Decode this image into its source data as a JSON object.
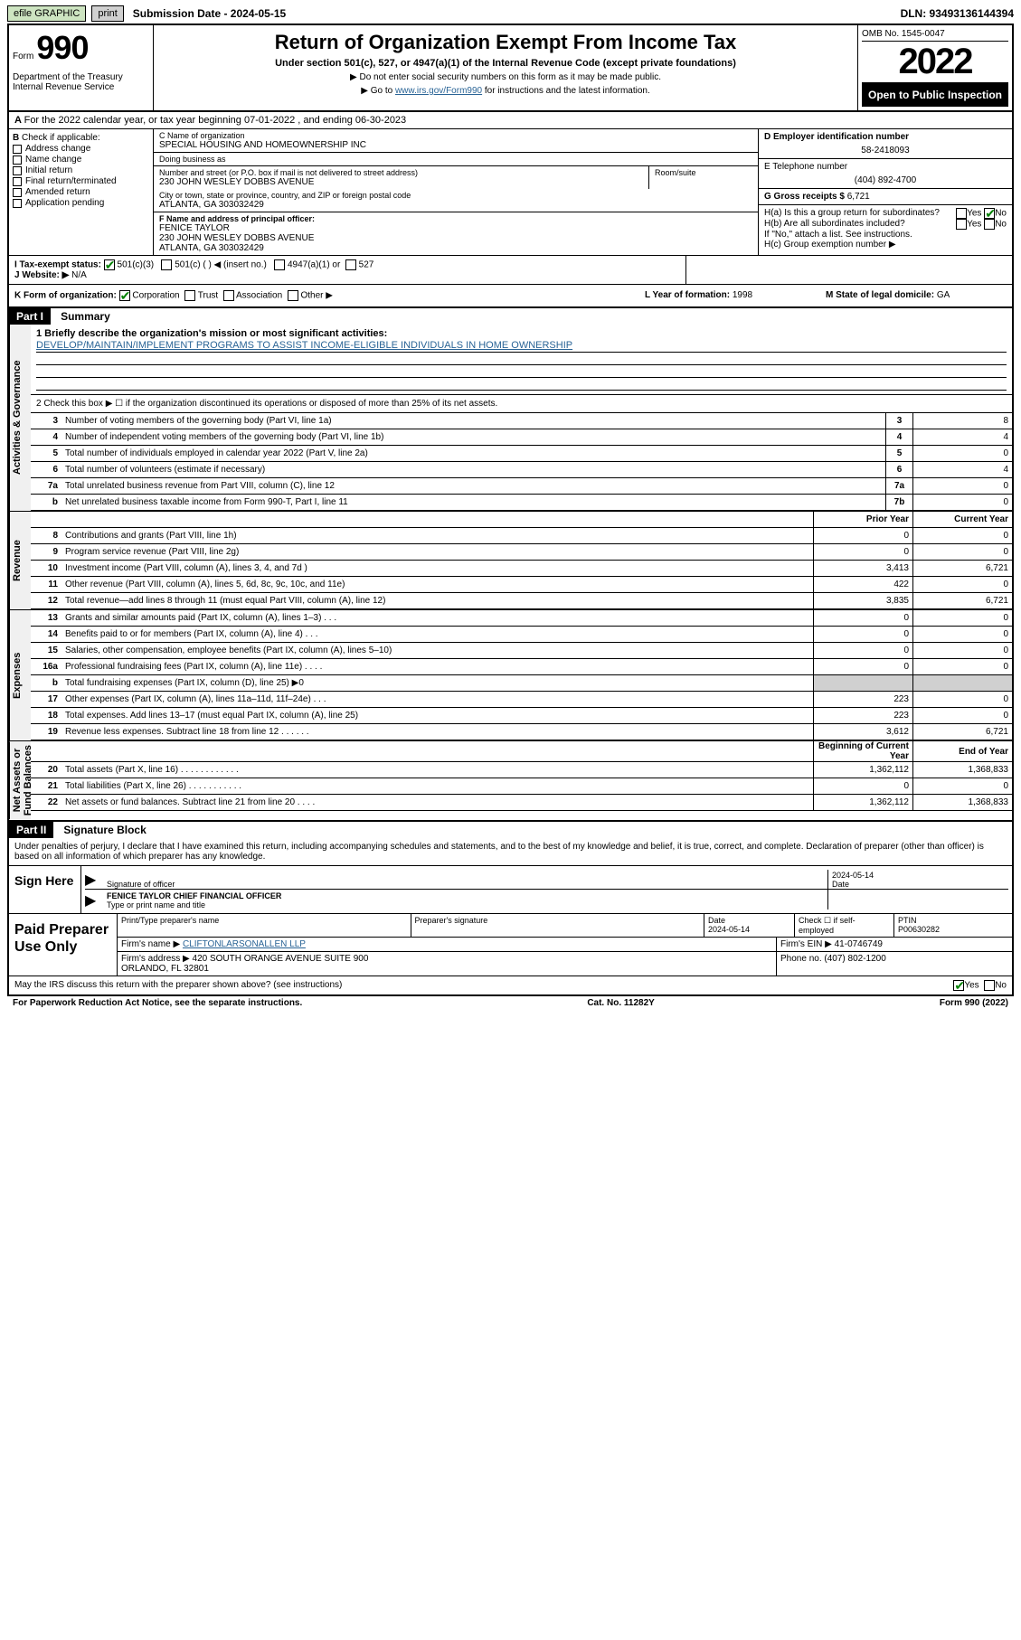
{
  "topbar": {
    "efile": "efile GRAPHIC",
    "print": "print",
    "subdate_label": "Submission Date - 2024-05-15",
    "dln": "DLN: 93493136144394"
  },
  "header": {
    "form_prefix": "Form",
    "form_no": "990",
    "dept": "Department of the Treasury\nInternal Revenue Service",
    "title": "Return of Organization Exempt From Income Tax",
    "sub1": "Under section 501(c), 527, or 4947(a)(1) of the Internal Revenue Code (except private foundations)",
    "sub2": "▶ Do not enter social security numbers on this form as it may be made public.",
    "sub3_pre": "▶ Go to ",
    "sub3_link": "www.irs.gov/Form990",
    "sub3_post": " for instructions and the latest information.",
    "omb": "OMB No. 1545-0047",
    "year": "2022",
    "open": "Open to Public Inspection"
  },
  "periodA": "For the 2022 calendar year, or tax year beginning 07-01-2022   , and ending 06-30-2023",
  "B": {
    "label": "Check if applicable:",
    "addr_change": "Address change",
    "name_change": "Name change",
    "initial": "Initial return",
    "final": "Final return/terminated",
    "amended": "Amended return",
    "app_pending": "Application pending"
  },
  "C": {
    "name_label": "C Name of organization",
    "name": "SPECIAL HOUSING AND HOMEOWNERSHIP INC",
    "dba_label": "Doing business as",
    "dba": "",
    "street_label": "Number and street (or P.O. box if mail is not delivered to street address)",
    "room_label": "Room/suite",
    "street": "230 JOHN WESLEY DOBBS AVENUE",
    "city_label": "City or town, state or province, country, and ZIP or foreign postal code",
    "city": "ATLANTA, GA  303032429"
  },
  "D": {
    "label": "D Employer identification number",
    "val": "58-2418093"
  },
  "E": {
    "label": "E Telephone number",
    "val": "(404) 892-4700"
  },
  "G": {
    "label": "G Gross receipts $",
    "val": "6,721"
  },
  "F": {
    "label": "F  Name and address of principal officer:",
    "name": "FENICE TAYLOR",
    "addr1": "230 JOHN WESLEY DOBBS AVENUE",
    "addr2": "ATLANTA, GA  303032429"
  },
  "H": {
    "a_label": "H(a)  Is this a group return for subordinates?",
    "a_yes": "Yes",
    "a_no": "No",
    "a_no_checked": true,
    "b_label": "H(b)  Are all subordinates included?",
    "b_yes": "Yes",
    "b_no": "No",
    "b_note": "If \"No,\" attach a list. See instructions.",
    "c_label": "H(c)  Group exemption number ▶"
  },
  "I": {
    "label": "I   Tax-exempt status:",
    "c3": "501(c)(3)",
    "c3_checked": true,
    "cx": "501(c) (   ) ◀ (insert no.)",
    "a1": "4947(a)(1) or",
    "s527": "527"
  },
  "J": {
    "label": "J   Website: ▶",
    "val": "N/A"
  },
  "K": {
    "label": "K Form of organization:",
    "corp": "Corporation",
    "corp_checked": true,
    "trust": "Trust",
    "assoc": "Association",
    "other": "Other ▶"
  },
  "L": {
    "label": "L Year of formation:",
    "val": "1998"
  },
  "M": {
    "label": "M State of legal domicile:",
    "val": "GA"
  },
  "part1": {
    "num": "Part I",
    "title": "Summary"
  },
  "sidelabels": {
    "gov": "Activities & Governance",
    "rev": "Revenue",
    "exp": "Expenses",
    "net": "Net Assets or\nFund Balances"
  },
  "line1": {
    "label": "1  Briefly describe the organization's mission or most significant activities:",
    "text": "DEVELOP/MAINTAIN/IMPLEMENT PROGRAMS TO ASSIST INCOME-ELIGIBLE INDIVIDUALS IN HOME OWNERSHIP"
  },
  "line2": "2   Check this box ▶ ☐  if the organization discontinued its operations or disposed of more than 25% of its net assets.",
  "govlines": [
    {
      "n": "3",
      "t": "Number of voting members of the governing body (Part VI, line 1a)",
      "b": "3",
      "v": "8"
    },
    {
      "n": "4",
      "t": "Number of independent voting members of the governing body (Part VI, line 1b)",
      "b": "4",
      "v": "4"
    },
    {
      "n": "5",
      "t": "Total number of individuals employed in calendar year 2022 (Part V, line 2a)",
      "b": "5",
      "v": "0"
    },
    {
      "n": "6",
      "t": "Total number of volunteers (estimate if necessary)",
      "b": "6",
      "v": "4"
    },
    {
      "n": "7a",
      "t": "Total unrelated business revenue from Part VIII, column (C), line 12",
      "b": "7a",
      "v": "0"
    },
    {
      "n": "b",
      "t": "Net unrelated business taxable income from Form 990-T, Part I, line 11",
      "b": "7b",
      "v": "0"
    }
  ],
  "pycy_hdr": {
    "p": "Prior Year",
    "c": "Current Year"
  },
  "revlines": [
    {
      "n": "8",
      "t": "Contributions and grants (Part VIII, line 1h)",
      "p": "0",
      "c": "0"
    },
    {
      "n": "9",
      "t": "Program service revenue (Part VIII, line 2g)",
      "p": "0",
      "c": "0"
    },
    {
      "n": "10",
      "t": "Investment income (Part VIII, column (A), lines 3, 4, and 7d )",
      "p": "3,413",
      "c": "6,721"
    },
    {
      "n": "11",
      "t": "Other revenue (Part VIII, column (A), lines 5, 6d, 8c, 9c, 10c, and 11e)",
      "p": "422",
      "c": "0"
    },
    {
      "n": "12",
      "t": "Total revenue—add lines 8 through 11 (must equal Part VIII, column (A), line 12)",
      "p": "3,835",
      "c": "6,721"
    }
  ],
  "explines": [
    {
      "n": "13",
      "t": "Grants and similar amounts paid (Part IX, column (A), lines 1–3)   .    .    .",
      "p": "0",
      "c": "0"
    },
    {
      "n": "14",
      "t": "Benefits paid to or for members (Part IX, column (A), line 4)   .    .    .",
      "p": "0",
      "c": "0"
    },
    {
      "n": "15",
      "t": "Salaries, other compensation, employee benefits (Part IX, column (A), lines 5–10)",
      "p": "0",
      "c": "0"
    },
    {
      "n": "16a",
      "t": "Professional fundraising fees (Part IX, column (A), line 11e)   .    .    .    .",
      "p": "0",
      "c": "0"
    },
    {
      "n": "b",
      "t": "Total fundraising expenses (Part IX, column (D), line 25) ▶0",
      "p": "",
      "c": "",
      "shaded": true
    },
    {
      "n": "17",
      "t": "Other expenses (Part IX, column (A), lines 11a–11d, 11f–24e)   .    .    .",
      "p": "223",
      "c": "0"
    },
    {
      "n": "18",
      "t": "Total expenses. Add lines 13–17 (must equal Part IX, column (A), line 25)",
      "p": "223",
      "c": "0"
    },
    {
      "n": "19",
      "t": "Revenue less expenses. Subtract line 18 from line 12   .    .    .    .    .    .",
      "p": "3,612",
      "c": "6,721"
    }
  ],
  "net_hdr": {
    "p": "Beginning of Current Year",
    "c": "End of Year"
  },
  "netlines": [
    {
      "n": "20",
      "t": "Total assets (Part X, line 16)   .    .    .    .    .    .    .    .    .    .    .    .",
      "p": "1,362,112",
      "c": "1,368,833"
    },
    {
      "n": "21",
      "t": "Total liabilities (Part X, line 26)   .    .    .    .    .    .    .    .    .    .    .",
      "p": "0",
      "c": "0"
    },
    {
      "n": "22",
      "t": "Net assets or fund balances. Subtract line 21 from line 20   .    .    .    .",
      "p": "1,362,112",
      "c": "1,368,833"
    }
  ],
  "part2": {
    "num": "Part II",
    "title": "Signature Block"
  },
  "sigdecl": "Under penalties of perjury, I declare that I have examined this return, including accompanying schedules and statements, and to the best of my knowledge and belief, it is true, correct, and complete. Declaration of preparer (other than officer) is based on all information of which preparer has any knowledge.",
  "sign": {
    "here": "Sign Here",
    "sig_label": "Signature of officer",
    "date": "2024-05-14",
    "date_label": "Date",
    "name": "FENICE TAYLOR  CHIEF FINANCIAL OFFICER",
    "name_label": "Type or print name and title"
  },
  "prep": {
    "lbl": "Paid Preparer Use Only",
    "r1": {
      "a": "Print/Type preparer's name",
      "b": "Preparer's signature",
      "c": "Date\n2024-05-14",
      "d": "Check ☐ if self-employed",
      "e": "PTIN\nP00630282"
    },
    "r2a": {
      "l": "Firm's name    ▶",
      "v": "CLIFTONLARSONALLEN LLP"
    },
    "r2b": {
      "l": "Firm's EIN ▶",
      "v": "41-0746749"
    },
    "r3a": {
      "l": "Firm's address ▶",
      "v": "420 SOUTH ORANGE AVENUE SUITE 900\nORLANDO, FL  32801"
    },
    "r3b": {
      "l": "Phone no.",
      "v": "(407) 802-1200"
    }
  },
  "discuss": {
    "t": "May the IRS discuss this return with the preparer shown above? (see instructions)",
    "y": "Yes",
    "n": "No",
    "y_checked": true
  },
  "footer": {
    "a": "For Paperwork Reduction Act Notice, see the separate instructions.",
    "b": "Cat. No. 11282Y",
    "c": "Form 990 (2022)"
  }
}
